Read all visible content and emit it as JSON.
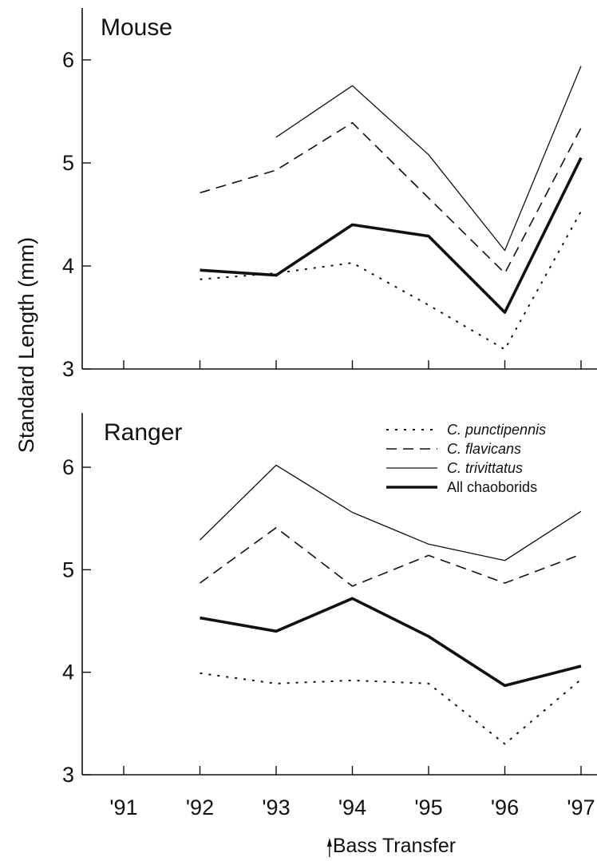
{
  "chart_data": {
    "type": "line",
    "ylabel": "Standard Length  (mm)",
    "categories": [
      "'91",
      "'92",
      "'93",
      "'94",
      "'95",
      "'96",
      "'97"
    ],
    "x": [
      1991,
      1992,
      1993,
      1994,
      1995,
      1996,
      1997
    ],
    "ylim": [
      3,
      6.5
    ],
    "yticks": [
      3,
      4,
      5,
      6
    ],
    "legend": {
      "placement": "top-right of lower panel",
      "entries": [
        {
          "label": "C. punctipennis",
          "style": "dotted",
          "italic": true
        },
        {
          "label": "C. flavicans",
          "style": "dashed",
          "italic": true
        },
        {
          "label": "C. trivittatus",
          "style": "thin-solid",
          "italic": true
        },
        {
          "label": "All chaoborids",
          "style": "thick-solid",
          "italic": false
        }
      ]
    },
    "annotation": {
      "text": "Bass Transfer",
      "x": 1993.7
    },
    "grid": false,
    "panels": [
      {
        "title": "Mouse",
        "series": [
          {
            "name": "C. punctipennis",
            "style": "dotted",
            "values": [
              null,
              3.87,
              3.93,
              4.03,
              3.62,
              3.19,
              4.53
            ]
          },
          {
            "name": "C. flavicans",
            "style": "dashed",
            "values": [
              null,
              4.71,
              4.93,
              5.39,
              4.66,
              3.93,
              5.34
            ]
          },
          {
            "name": "C. trivittatus",
            "style": "thin-solid",
            "values": [
              null,
              null,
              5.25,
              5.75,
              5.08,
              4.15,
              5.94
            ]
          },
          {
            "name": "All chaoborids",
            "style": "thick-solid",
            "values": [
              null,
              3.96,
              3.91,
              4.4,
              4.29,
              3.55,
              5.05
            ]
          }
        ]
      },
      {
        "title": "Ranger",
        "series": [
          {
            "name": "C. punctipennis",
            "style": "dotted",
            "values": [
              null,
              3.99,
              3.89,
              3.92,
              3.89,
              3.3,
              3.93
            ]
          },
          {
            "name": "C. flavicans",
            "style": "dashed",
            "values": [
              null,
              4.87,
              5.41,
              4.84,
              5.14,
              4.87,
              5.15
            ]
          },
          {
            "name": "C. trivittatus",
            "style": "thin-solid",
            "values": [
              null,
              5.29,
              6.02,
              5.56,
              5.25,
              5.09,
              5.57
            ]
          },
          {
            "name": "All chaoborids",
            "style": "thick-solid",
            "values": [
              null,
              4.53,
              4.4,
              4.72,
              4.35,
              3.87,
              4.06
            ]
          }
        ]
      }
    ]
  }
}
